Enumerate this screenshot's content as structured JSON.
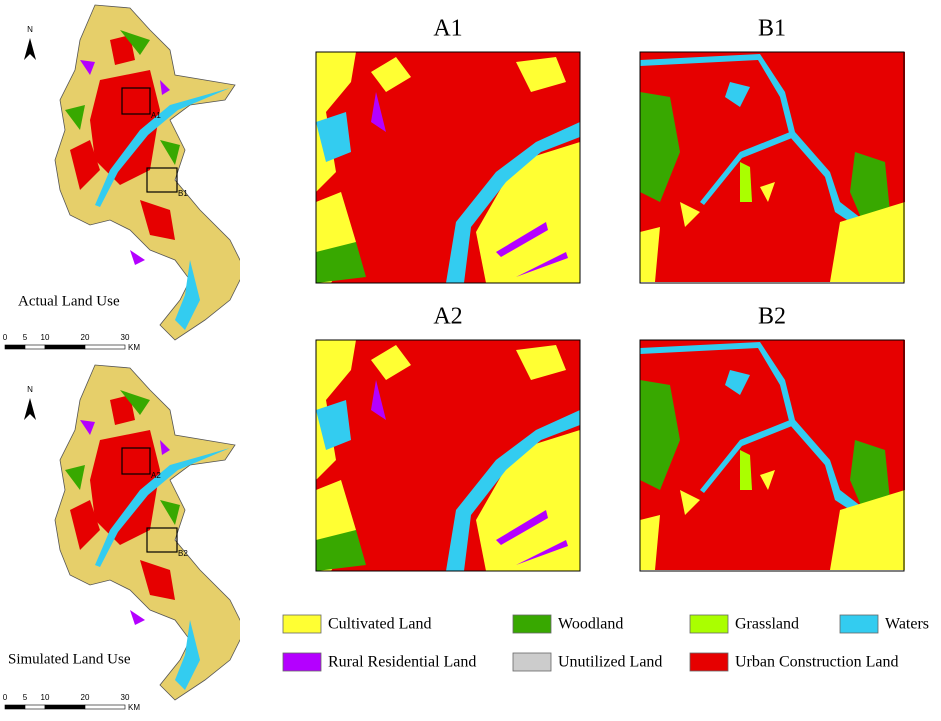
{
  "maps": [
    {
      "label": "Actual Land Use",
      "north": "N",
      "scale_ticks": [
        0,
        5,
        10,
        20,
        30
      ],
      "scale_unit": "KM",
      "boxes": [
        "A1",
        "B1"
      ]
    },
    {
      "label": "Simulated Land Use",
      "north": "N",
      "scale_ticks": [
        0,
        5,
        10,
        20,
        30
      ],
      "scale_unit": "KM",
      "boxes": [
        "A2",
        "B2"
      ]
    }
  ],
  "panels": [
    {
      "title": "A1"
    },
    {
      "title": "B1"
    },
    {
      "title": "A2"
    },
    {
      "title": "B2"
    }
  ],
  "legend": [
    {
      "name": "Cultivated Land",
      "color": "#ffff33"
    },
    {
      "name": "Woodland",
      "color": "#38a800"
    },
    {
      "name": "Grassland",
      "color": "#aaff00"
    },
    {
      "name": "Waters",
      "color": "#33ccf0"
    },
    {
      "name": "Rural Residential Land",
      "color": "#b400ff"
    },
    {
      "name": "Unutilized Land",
      "color": "#cccccc"
    },
    {
      "name": "Urban Construction Land",
      "color": "#e60000"
    }
  ]
}
